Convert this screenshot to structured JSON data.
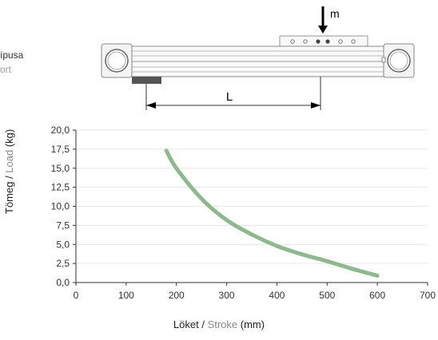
{
  "legend": {
    "line1": "ípusa",
    "line2": "ort"
  },
  "schematic": {
    "mass_label": "m",
    "length_label": "L"
  },
  "chart_data": {
    "type": "line",
    "x": [
      180,
      200,
      250,
      300,
      350,
      400,
      450,
      500,
      550,
      600
    ],
    "y": [
      17.3,
      15.0,
      11.0,
      8.2,
      6.3,
      4.8,
      3.7,
      2.8,
      1.8,
      0.9
    ],
    "xlim": [
      0,
      700
    ],
    "ylim": [
      0,
      20
    ],
    "xticks": [
      "0",
      "100",
      "200",
      "300",
      "400",
      "500",
      "600",
      "700"
    ],
    "yticks": [
      "0,0",
      "2,5",
      "5,0",
      "7,5",
      "10,0",
      "12,5",
      "15,0",
      "17,5",
      "20,0"
    ],
    "xlabel": {
      "part1": "Löket",
      "sep": " / ",
      "part2": "Stroke",
      "unit": " (mm)"
    },
    "ylabel": {
      "part1": "Tömeg",
      "sep": " / ",
      "part2": "Load",
      "unit": " (kg)"
    },
    "grid": true,
    "line_color": "#8fb88f"
  }
}
